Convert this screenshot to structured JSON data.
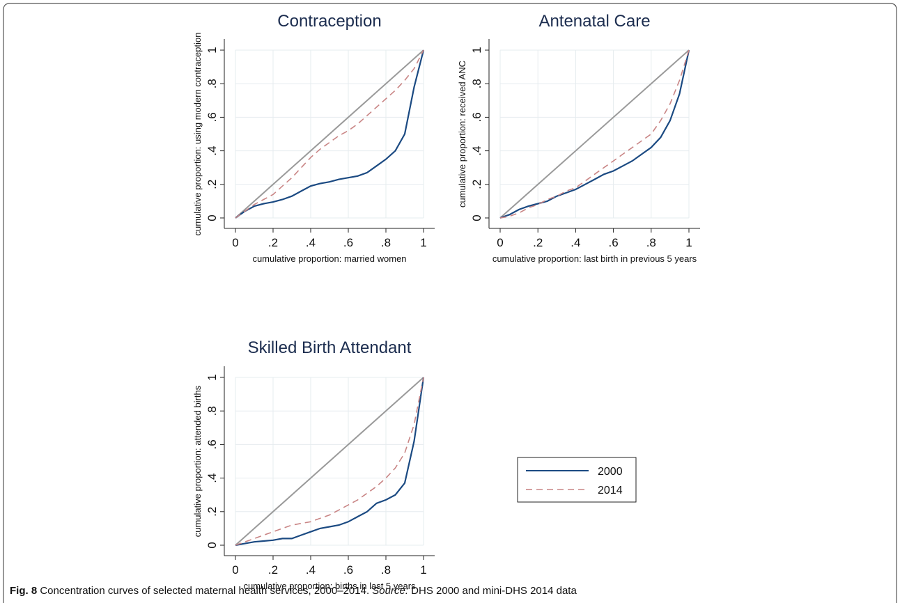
{
  "chart_data": [
    {
      "type": "line",
      "title": "Contraception",
      "x_label": "cumulative proportion: married women",
      "y_label": "cumulative proportion: using modern contraception",
      "x": [
        0,
        0.05,
        0.1,
        0.15,
        0.2,
        0.25,
        0.3,
        0.35,
        0.4,
        0.45,
        0.5,
        0.55,
        0.6,
        0.65,
        0.7,
        0.75,
        0.8,
        0.85,
        0.9,
        0.95,
        1
      ],
      "series": [
        {
          "name": "2000",
          "color": "#1b4a82",
          "values": [
            0,
            0.04,
            0.07,
            0.085,
            0.095,
            0.11,
            0.13,
            0.16,
            0.19,
            0.205,
            0.215,
            0.23,
            0.24,
            0.25,
            0.27,
            0.31,
            0.35,
            0.4,
            0.5,
            0.78,
            1
          ]
        },
        {
          "name": "2014",
          "color": "#c98585",
          "dashed": true,
          "values": [
            0,
            0.04,
            0.08,
            0.11,
            0.14,
            0.19,
            0.24,
            0.3,
            0.36,
            0.41,
            0.45,
            0.49,
            0.52,
            0.56,
            0.61,
            0.66,
            0.71,
            0.76,
            0.82,
            0.89,
            1
          ]
        }
      ],
      "xlim": [
        0,
        1
      ],
      "ylim": [
        0,
        1
      ],
      "xticks": [
        0,
        {
          "value": 0.2,
          "label": ".2"
        },
        {
          "value": 0.4,
          "label": ".4"
        },
        {
          "value": 0.6,
          "label": ".6"
        },
        {
          "value": 0.8,
          "label": ".8"
        },
        1
      ],
      "yticks": [
        0,
        {
          "value": 0.2,
          "label": ".2"
        },
        {
          "value": 0.4,
          "label": ".4"
        },
        {
          "value": 0.6,
          "label": ".6"
        },
        {
          "value": 0.8,
          "label": ".8"
        },
        1
      ],
      "grid": true
    },
    {
      "type": "line",
      "title": "Antenatal Care",
      "x_label": "cumulative proportion: last birth in previous 5 years",
      "y_label": "cumulative proportion: received ANC",
      "x": [
        0,
        0.05,
        0.1,
        0.15,
        0.2,
        0.25,
        0.3,
        0.35,
        0.4,
        0.45,
        0.5,
        0.55,
        0.6,
        0.65,
        0.7,
        0.75,
        0.8,
        0.85,
        0.9,
        0.95,
        1
      ],
      "series": [
        {
          "color": "#1b4a82",
          "values": [
            0,
            0.02,
            0.05,
            0.07,
            0.085,
            0.1,
            0.13,
            0.15,
            0.17,
            0.2,
            0.23,
            0.26,
            0.28,
            0.31,
            0.34,
            0.38,
            0.42,
            0.48,
            0.58,
            0.74,
            1
          ]
        },
        {
          "color": "#c98585",
          "dashed": true,
          "values": [
            0,
            0.01,
            0.03,
            0.06,
            0.08,
            0.11,
            0.13,
            0.16,
            0.18,
            0.22,
            0.26,
            0.3,
            0.34,
            0.38,
            0.42,
            0.46,
            0.5,
            0.58,
            0.68,
            0.82,
            1
          ]
        }
      ],
      "xlim": [
        0,
        1
      ],
      "ylim": [
        0,
        1
      ],
      "xticks": [
        0,
        {
          "value": 0.2,
          "label": ".2"
        },
        {
          "value": 0.4,
          "label": ".4"
        },
        {
          "value": 0.6,
          "label": ".6"
        },
        {
          "value": 0.8,
          "label": ".8"
        },
        1
      ],
      "yticks": [
        0,
        {
          "value": 0.2,
          "label": ".2"
        },
        {
          "value": 0.4,
          "label": ".4"
        },
        {
          "value": 0.6,
          "label": ".6"
        },
        {
          "value": 0.8,
          "label": ".8"
        },
        1
      ],
      "grid": true
    },
    {
      "type": "line",
      "title": "Skilled Birth Attendant",
      "x_label": "cumulative proportion: births in last 5 years",
      "y_label": "cumulative proportion: attended births",
      "x": [
        0,
        0.05,
        0.1,
        0.15,
        0.2,
        0.25,
        0.3,
        0.35,
        0.4,
        0.45,
        0.5,
        0.55,
        0.6,
        0.65,
        0.7,
        0.75,
        0.8,
        0.85,
        0.9,
        0.95,
        1
      ],
      "series": [
        {
          "color": "#1b4a82",
          "values": [
            0,
            0.01,
            0.02,
            0.025,
            0.03,
            0.04,
            0.04,
            0.06,
            0.08,
            0.1,
            0.11,
            0.12,
            0.14,
            0.17,
            0.2,
            0.25,
            0.27,
            0.3,
            0.37,
            0.62,
            1
          ]
        },
        {
          "color": "#c98585",
          "dashed": true,
          "values": [
            0,
            0.02,
            0.04,
            0.06,
            0.08,
            0.1,
            0.12,
            0.13,
            0.14,
            0.16,
            0.18,
            0.21,
            0.24,
            0.27,
            0.31,
            0.35,
            0.4,
            0.46,
            0.55,
            0.72,
            1
          ]
        }
      ],
      "xlim": [
        0,
        1
      ],
      "ylim": [
        0,
        1
      ],
      "xticks": [
        0,
        {
          "value": 0.2,
          "label": ".2"
        },
        {
          "value": 0.4,
          "label": ".4"
        },
        {
          "value": 0.6,
          "label": ".6"
        },
        {
          "value": 0.8,
          "label": ".8"
        },
        1
      ],
      "yticks": [
        0,
        {
          "value": 0.2,
          "label": ".2"
        },
        {
          "value": 0.4,
          "label": ".4"
        },
        {
          "value": 0.6,
          "label": ".6"
        },
        {
          "value": 0.8,
          "label": ".8"
        },
        1
      ],
      "grid": true
    }
  ],
  "caption": {
    "label": "Fig. 8",
    "text": "Concentration curves of selected maternal health services, 2000–2014.",
    "source_label": "Source:",
    "source_text": "DHS 2000 and mini-DHS 2014 data"
  }
}
